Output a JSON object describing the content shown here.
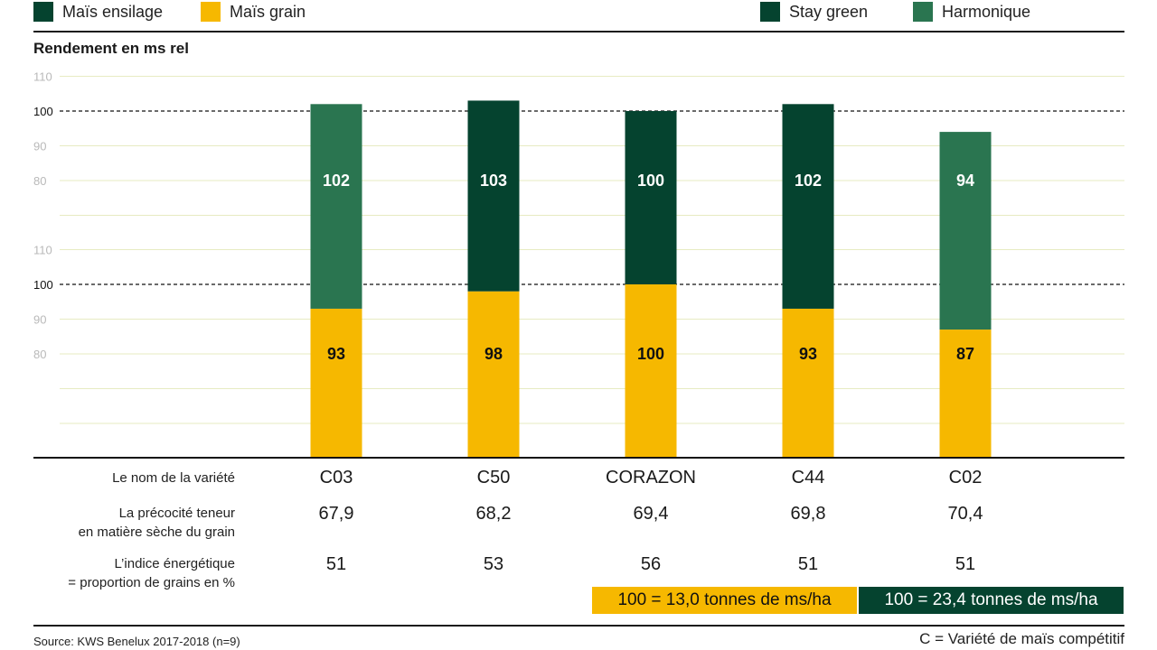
{
  "legend": [
    {
      "label": "Maïs ensilage",
      "color": "#05432f"
    },
    {
      "label": "Maïs grain",
      "color": "#f6b800"
    },
    {
      "label": "Stay green",
      "color": "#05432f"
    },
    {
      "label": "Harmonique",
      "color": "#2a7550"
    }
  ],
  "chart_data": {
    "type": "bar",
    "ylabel": "Rendement en ms rel",
    "ylim": [
      80,
      110
    ],
    "yticks": [
      "110",
      "100",
      "90",
      "80"
    ],
    "reference_value": 100,
    "categories": [
      "C03",
      "C50",
      "CORAZON",
      "C44",
      "C02"
    ],
    "series": [
      {
        "name": "Maïs ensilage",
        "values": [
          102,
          103,
          100,
          102,
          94
        ]
      },
      {
        "name": "Maïs grain",
        "values": [
          93,
          98,
          100,
          93,
          87
        ]
      }
    ],
    "ensilage_group": [
      "Harmonique",
      "Stay green",
      "Stay green",
      "Stay green",
      "Harmonique"
    ],
    "colors": {
      "grain": "#f6b800",
      "stay_green": "#05432f",
      "harmonique": "#2a7550",
      "gridline": "#e7ebc2"
    }
  },
  "table": {
    "rows": [
      {
        "label": [
          "Le nom de la variété"
        ],
        "values": [
          "C03",
          "C50",
          "CORAZON",
          "C44",
          "C02"
        ]
      },
      {
        "label": [
          "La précocité teneur",
          "en matière sèche du grain"
        ],
        "values": [
          "67,9",
          "68,2",
          "69,4",
          "69,8",
          "70,4"
        ]
      },
      {
        "label": [
          "L’indice énergétique",
          "= proportion de grains en %"
        ],
        "values": [
          "51",
          "53",
          "56",
          "51",
          "51"
        ]
      }
    ]
  },
  "basis": {
    "grain": "100 = 13,0 tonnes de ms/ha",
    "ensilage": "100 = 23,4 tonnes de ms/ha"
  },
  "footer": {
    "source": "Source: KWS Benelux 2017-2018 (n=9)",
    "note": "C = Variété de maïs compétitif"
  }
}
